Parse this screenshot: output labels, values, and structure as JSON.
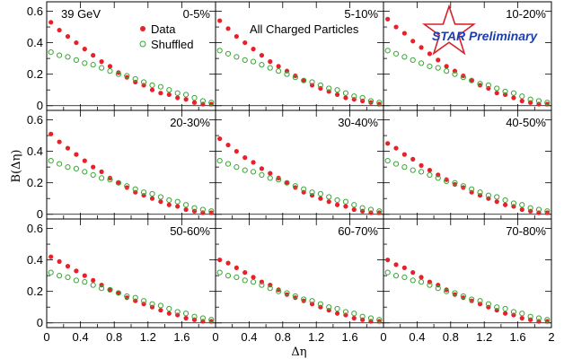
{
  "chart_data": {
    "type": "scatter",
    "layout": "3x3 grid of panels with shared axes",
    "energy_label": "39 GeV",
    "particles_label": "All Charged Particles",
    "preliminary_label": "STAR Preliminary",
    "xlabel": "Δη",
    "ylabel": "B(Δη)",
    "xlim": [
      0,
      2
    ],
    "ylim": [
      -0.03,
      0.66
    ],
    "x_ticks": [
      0,
      0.4,
      0.8,
      1.2,
      1.6,
      2
    ],
    "x_tick_labels": [
      [
        "0",
        "0.4",
        "0.8",
        "1.2",
        "1.6",
        ""
      ],
      [
        "0",
        "0.4",
        "0.8",
        "1.2",
        "1.6",
        ""
      ],
      [
        "0",
        "0.4",
        "0.8",
        "1.2",
        "1.6",
        "2"
      ]
    ],
    "y_ticks": [
      0,
      0.2,
      0.4,
      0.6
    ],
    "y_tick_labels": [
      "0",
      "0.2",
      "0.4",
      "0.6"
    ],
    "legend": {
      "placement": "top of first panel",
      "entries": [
        "Data",
        "Shuffled"
      ]
    },
    "colors": {
      "data": "#e8202a",
      "shuffled": "#3aa635",
      "star": "#d6232a",
      "star_text": "#1f3fa8"
    },
    "x": [
      0.05,
      0.15,
      0.25,
      0.35,
      0.45,
      0.55,
      0.65,
      0.75,
      0.85,
      0.95,
      1.05,
      1.15,
      1.25,
      1.35,
      1.45,
      1.55,
      1.65,
      1.75,
      1.85,
      1.95
    ],
    "panels": [
      {
        "label": "0-5%",
        "series": [
          {
            "name": "Data",
            "values": [
              0.53,
              0.48,
              0.44,
              0.4,
              0.36,
              0.32,
              0.28,
              0.25,
              0.21,
              0.18,
              0.15,
              0.13,
              0.1,
              0.08,
              0.07,
              0.05,
              0.04,
              0.02,
              0.01,
              0.01
            ]
          },
          {
            "name": "Shuffled",
            "values": [
              0.34,
              0.32,
              0.31,
              0.29,
              0.27,
              0.26,
              0.24,
              0.22,
              0.2,
              0.19,
              0.17,
              0.15,
              0.13,
              0.12,
              0.1,
              0.08,
              0.07,
              0.05,
              0.03,
              0.02
            ]
          }
        ]
      },
      {
        "label": "5-10%",
        "series": [
          {
            "name": "Data",
            "values": [
              0.54,
              0.49,
              0.44,
              0.4,
              0.36,
              0.32,
              0.28,
              0.25,
              0.22,
              0.19,
              0.16,
              0.13,
              0.11,
              0.09,
              0.07,
              0.05,
              0.04,
              0.03,
              0.02,
              0.01
            ]
          },
          {
            "name": "Shuffled",
            "values": [
              0.35,
              0.33,
              0.31,
              0.29,
              0.28,
              0.26,
              0.24,
              0.22,
              0.2,
              0.18,
              0.16,
              0.15,
              0.13,
              0.11,
              0.1,
              0.08,
              0.06,
              0.05,
              0.03,
              0.02
            ]
          }
        ]
      },
      {
        "label": "10-20%",
        "series": [
          {
            "name": "Data",
            "values": [
              0.55,
              0.5,
              0.46,
              0.41,
              0.37,
              0.33,
              0.29,
              0.25,
              0.22,
              0.19,
              0.16,
              0.13,
              0.11,
              0.08,
              0.07,
              0.05,
              0.03,
              0.02,
              0.01,
              0.01
            ]
          },
          {
            "name": "Shuffled",
            "values": [
              0.35,
              0.33,
              0.31,
              0.29,
              0.27,
              0.25,
              0.24,
              0.22,
              0.2,
              0.18,
              0.16,
              0.14,
              0.13,
              0.11,
              0.09,
              0.08,
              0.06,
              0.04,
              0.03,
              0.02
            ]
          }
        ]
      },
      {
        "label": "20-30%",
        "series": [
          {
            "name": "Data",
            "values": [
              0.51,
              0.46,
              0.42,
              0.38,
              0.34,
              0.3,
              0.27,
              0.23,
              0.2,
              0.17,
              0.14,
              0.12,
              0.1,
              0.08,
              0.06,
              0.05,
              0.03,
              0.02,
              0.01,
              0.01
            ]
          },
          {
            "name": "Shuffled",
            "values": [
              0.34,
              0.32,
              0.3,
              0.29,
              0.27,
              0.25,
              0.23,
              0.22,
              0.2,
              0.18,
              0.16,
              0.14,
              0.13,
              0.11,
              0.09,
              0.08,
              0.06,
              0.04,
              0.03,
              0.02
            ]
          }
        ]
      },
      {
        "label": "30-40%",
        "series": [
          {
            "name": "Data",
            "values": [
              0.48,
              0.44,
              0.4,
              0.36,
              0.33,
              0.29,
              0.26,
              0.23,
              0.2,
              0.17,
              0.14,
              0.12,
              0.1,
              0.08,
              0.06,
              0.05,
              0.03,
              0.02,
              0.01,
              0.01
            ]
          },
          {
            "name": "Shuffled",
            "values": [
              0.34,
              0.32,
              0.3,
              0.28,
              0.27,
              0.25,
              0.23,
              0.22,
              0.2,
              0.18,
              0.16,
              0.14,
              0.13,
              0.11,
              0.09,
              0.08,
              0.06,
              0.04,
              0.03,
              0.02
            ]
          }
        ]
      },
      {
        "label": "40-50%",
        "series": [
          {
            "name": "Data",
            "values": [
              0.45,
              0.42,
              0.38,
              0.35,
              0.31,
              0.28,
              0.25,
              0.22,
              0.19,
              0.17,
              0.14,
              0.12,
              0.1,
              0.08,
              0.06,
              0.05,
              0.03,
              0.02,
              0.01,
              0.01
            ]
          },
          {
            "name": "Shuffled",
            "values": [
              0.34,
              0.32,
              0.3,
              0.28,
              0.27,
              0.25,
              0.23,
              0.21,
              0.2,
              0.18,
              0.16,
              0.14,
              0.12,
              0.11,
              0.09,
              0.07,
              0.06,
              0.04,
              0.03,
              0.02
            ]
          }
        ]
      },
      {
        "label": "50-60%",
        "series": [
          {
            "name": "Data",
            "values": [
              0.42,
              0.39,
              0.36,
              0.33,
              0.3,
              0.27,
              0.24,
              0.21,
              0.19,
              0.16,
              0.14,
              0.12,
              0.1,
              0.08,
              0.06,
              0.05,
              0.03,
              0.02,
              0.01,
              0.01
            ]
          },
          {
            "name": "Shuffled",
            "values": [
              0.32,
              0.3,
              0.29,
              0.27,
              0.26,
              0.24,
              0.22,
              0.21,
              0.19,
              0.17,
              0.16,
              0.14,
              0.12,
              0.11,
              0.09,
              0.07,
              0.06,
              0.04,
              0.03,
              0.02
            ]
          }
        ]
      },
      {
        "label": "60-70%",
        "series": [
          {
            "name": "Data",
            "values": [
              0.4,
              0.38,
              0.35,
              0.32,
              0.29,
              0.26,
              0.24,
              0.21,
              0.18,
              0.16,
              0.14,
              0.12,
              0.1,
              0.08,
              0.06,
              0.05,
              0.03,
              0.02,
              0.01,
              0.01
            ]
          },
          {
            "name": "Shuffled",
            "values": [
              0.32,
              0.3,
              0.29,
              0.27,
              0.26,
              0.24,
              0.22,
              0.2,
              0.19,
              0.17,
              0.15,
              0.14,
              0.12,
              0.1,
              0.09,
              0.07,
              0.06,
              0.04,
              0.03,
              0.02
            ]
          }
        ]
      },
      {
        "label": "70-80%",
        "series": [
          {
            "name": "Data",
            "values": [
              0.4,
              0.37,
              0.35,
              0.32,
              0.29,
              0.26,
              0.24,
              0.21,
              0.18,
              0.16,
              0.14,
              0.12,
              0.1,
              0.08,
              0.06,
              0.05,
              0.03,
              0.02,
              0.01,
              0.01
            ]
          },
          {
            "name": "Shuffled",
            "values": [
              0.32,
              0.3,
              0.29,
              0.27,
              0.26,
              0.24,
              0.22,
              0.2,
              0.19,
              0.17,
              0.15,
              0.14,
              0.12,
              0.1,
              0.09,
              0.07,
              0.06,
              0.04,
              0.03,
              0.02
            ]
          }
        ]
      }
    ]
  }
}
